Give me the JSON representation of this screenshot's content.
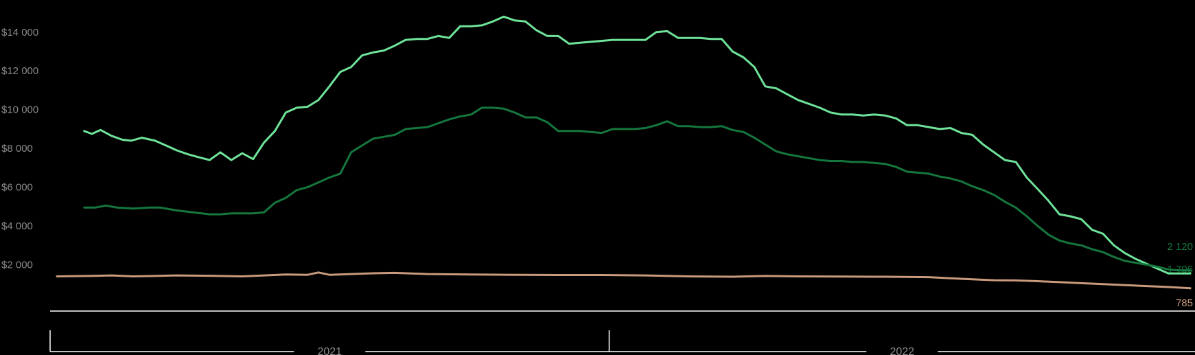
{
  "chart_data": {
    "type": "line",
    "title": "",
    "xlabel": "",
    "ylabel": "",
    "ylim": [
      0,
      15000
    ],
    "grid": false,
    "legend": "none",
    "y_ticks": [
      {
        "value": 2000,
        "label": "$2 000"
      },
      {
        "value": 4000,
        "label": "$4 000"
      },
      {
        "value": 6000,
        "label": "$6 000"
      },
      {
        "value": 8000,
        "label": "$8 000"
      },
      {
        "value": 10000,
        "label": "$10 000"
      },
      {
        "value": 12000,
        "label": "$12 000"
      },
      {
        "value": 14000,
        "label": "$14 000"
      }
    ],
    "x_range": [
      0,
      104
    ],
    "x_groups": [
      {
        "label": "2021",
        "start": 0,
        "end": 52
      },
      {
        "label": "2022",
        "start": 52,
        "end": 104
      }
    ],
    "series": [
      {
        "color": "#6fe39a",
        "end_label": "",
        "points": [
          [
            2.5,
            8900
          ],
          [
            3.2,
            8750
          ],
          [
            4,
            8950
          ],
          [
            5,
            8650
          ],
          [
            6,
            8450
          ],
          [
            6.8,
            8400
          ],
          [
            7.8,
            8550
          ],
          [
            9,
            8400
          ],
          [
            10,
            8150
          ],
          [
            11,
            7900
          ],
          [
            12,
            7700
          ],
          [
            13,
            7550
          ],
          [
            14,
            7400
          ],
          [
            15,
            7800
          ],
          [
            16,
            7400
          ],
          [
            17,
            7750
          ],
          [
            18,
            7450
          ],
          [
            19,
            8300
          ],
          [
            20,
            8900
          ],
          [
            21,
            9850
          ],
          [
            22,
            10100
          ],
          [
            23,
            10150
          ],
          [
            24,
            10500
          ],
          [
            25,
            11200
          ],
          [
            26,
            11950
          ],
          [
            27,
            12200
          ],
          [
            28,
            12800
          ],
          [
            29,
            12950
          ],
          [
            30,
            13050
          ],
          [
            31,
            13300
          ],
          [
            32,
            13600
          ],
          [
            33,
            13650
          ],
          [
            34,
            13650
          ],
          [
            35,
            13800
          ],
          [
            36,
            13700
          ],
          [
            37,
            14300
          ],
          [
            38,
            14300
          ],
          [
            39,
            14350
          ],
          [
            40,
            14550
          ],
          [
            41,
            14800
          ],
          [
            42,
            14600
          ],
          [
            43,
            14550
          ],
          [
            44,
            14100
          ],
          [
            45,
            13800
          ],
          [
            46,
            13800
          ],
          [
            47,
            13400
          ],
          [
            48,
            13450
          ],
          [
            49,
            13500
          ],
          [
            50,
            13550
          ],
          [
            51,
            13600
          ],
          [
            52,
            13600
          ],
          [
            53,
            13600
          ],
          [
            54,
            13600
          ],
          [
            55,
            14000
          ],
          [
            56,
            14050
          ],
          [
            57,
            13700
          ],
          [
            58,
            13700
          ],
          [
            59,
            13700
          ],
          [
            60,
            13650
          ],
          [
            61,
            13650
          ],
          [
            62,
            13000
          ],
          [
            63,
            12700
          ],
          [
            64,
            12200
          ],
          [
            65,
            11200
          ],
          [
            66,
            11100
          ],
          [
            67,
            10800
          ],
          [
            68,
            10500
          ],
          [
            69,
            10300
          ],
          [
            70,
            10100
          ],
          [
            71,
            9850
          ],
          [
            72,
            9750
          ],
          [
            73,
            9750
          ],
          [
            74,
            9700
          ],
          [
            75,
            9750
          ],
          [
            76,
            9700
          ],
          [
            77,
            9550
          ],
          [
            78,
            9200
          ],
          [
            79,
            9200
          ],
          [
            80,
            9100
          ],
          [
            81,
            9000
          ],
          [
            82,
            9050
          ],
          [
            83,
            8800
          ],
          [
            84,
            8700
          ],
          [
            85,
            8200
          ],
          [
            86,
            7800
          ],
          [
            87,
            7400
          ],
          [
            88,
            7300
          ],
          [
            89,
            6500
          ],
          [
            90,
            5900
          ],
          [
            91,
            5300
          ],
          [
            92,
            4600
          ],
          [
            93,
            4500
          ],
          [
            94,
            4350
          ],
          [
            95,
            3800
          ],
          [
            96,
            3600
          ],
          [
            97,
            3000
          ],
          [
            98,
            2600
          ],
          [
            99,
            2300
          ],
          [
            100,
            2050
          ],
          [
            101,
            1800
          ],
          [
            102,
            1550
          ],
          [
            103,
            1550
          ],
          [
            104,
            1550
          ]
        ]
      },
      {
        "color": "#15773d",
        "end_label": "1 706",
        "points": [
          [
            2.5,
            4950
          ],
          [
            3.5,
            4950
          ],
          [
            4.5,
            5050
          ],
          [
            5.5,
            4950
          ],
          [
            7,
            4900
          ],
          [
            8.5,
            4950
          ],
          [
            9.5,
            4950
          ],
          [
            11,
            4800
          ],
          [
            12.5,
            4700
          ],
          [
            14,
            4600
          ],
          [
            15,
            4600
          ],
          [
            16,
            4650
          ],
          [
            17,
            4650
          ],
          [
            18,
            4650
          ],
          [
            19,
            4700
          ],
          [
            20,
            5200
          ],
          [
            21,
            5450
          ],
          [
            22,
            5850
          ],
          [
            23,
            6000
          ],
          [
            24,
            6250
          ],
          [
            25,
            6500
          ],
          [
            26,
            6700
          ],
          [
            27,
            7800
          ],
          [
            28,
            8150
          ],
          [
            29,
            8500
          ],
          [
            30,
            8600
          ],
          [
            31,
            8700
          ],
          [
            32,
            9000
          ],
          [
            33,
            9050
          ],
          [
            34,
            9100
          ],
          [
            35,
            9300
          ],
          [
            36,
            9500
          ],
          [
            37,
            9650
          ],
          [
            38,
            9750
          ],
          [
            39,
            10100
          ],
          [
            40,
            10100
          ],
          [
            41,
            10050
          ],
          [
            42,
            9850
          ],
          [
            43,
            9600
          ],
          [
            44,
            9600
          ],
          [
            45,
            9350
          ],
          [
            46,
            8900
          ],
          [
            47,
            8900
          ],
          [
            48,
            8900
          ],
          [
            49,
            8850
          ],
          [
            50,
            8800
          ],
          [
            51,
            9000
          ],
          [
            52,
            9000
          ],
          [
            53,
            9000
          ],
          [
            54,
            9050
          ],
          [
            55,
            9200
          ],
          [
            56,
            9400
          ],
          [
            57,
            9150
          ],
          [
            58,
            9150
          ],
          [
            59,
            9100
          ],
          [
            60,
            9100
          ],
          [
            61,
            9150
          ],
          [
            62,
            8950
          ],
          [
            63,
            8850
          ],
          [
            64,
            8550
          ],
          [
            65,
            8200
          ],
          [
            66,
            7850
          ],
          [
            67,
            7700
          ],
          [
            68,
            7600
          ],
          [
            69,
            7500
          ],
          [
            70,
            7400
          ],
          [
            71,
            7350
          ],
          [
            72,
            7350
          ],
          [
            73,
            7300
          ],
          [
            74,
            7300
          ],
          [
            75,
            7250
          ],
          [
            76,
            7200
          ],
          [
            77,
            7050
          ],
          [
            78,
            6800
          ],
          [
            79,
            6750
          ],
          [
            80,
            6700
          ],
          [
            81,
            6550
          ],
          [
            82,
            6450
          ],
          [
            83,
            6300
          ],
          [
            84,
            6050
          ],
          [
            85,
            5850
          ],
          [
            86,
            5600
          ],
          [
            87,
            5250
          ],
          [
            88,
            4950
          ],
          [
            89,
            4500
          ],
          [
            90,
            4000
          ],
          [
            91,
            3550
          ],
          [
            92,
            3250
          ],
          [
            93,
            3100
          ],
          [
            94,
            3000
          ],
          [
            95,
            2800
          ],
          [
            96,
            2650
          ],
          [
            97,
            2400
          ],
          [
            98,
            2200
          ],
          [
            99,
            2100
          ],
          [
            100,
            2000
          ],
          [
            101,
            1900
          ],
          [
            102,
            1750
          ],
          [
            103,
            1706
          ],
          [
            104,
            1706
          ]
        ]
      },
      {
        "color": "#c99a7d",
        "end_label": "785",
        "points": [
          [
            0,
            1400
          ],
          [
            3,
            1420
          ],
          [
            5,
            1450
          ],
          [
            7,
            1400
          ],
          [
            9,
            1420
          ],
          [
            11,
            1450
          ],
          [
            14,
            1430
          ],
          [
            17,
            1400
          ],
          [
            19,
            1450
          ],
          [
            21,
            1500
          ],
          [
            23,
            1480
          ],
          [
            24,
            1600
          ],
          [
            25,
            1480
          ],
          [
            27,
            1520
          ],
          [
            29,
            1560
          ],
          [
            31,
            1580
          ],
          [
            34,
            1520
          ],
          [
            38,
            1500
          ],
          [
            42,
            1480
          ],
          [
            46,
            1470
          ],
          [
            50,
            1470
          ],
          [
            54,
            1450
          ],
          [
            58,
            1400
          ],
          [
            62,
            1380
          ],
          [
            65,
            1420
          ],
          [
            68,
            1400
          ],
          [
            72,
            1390
          ],
          [
            76,
            1380
          ],
          [
            80,
            1360
          ],
          [
            82,
            1300
          ],
          [
            84,
            1250
          ],
          [
            86,
            1200
          ],
          [
            88,
            1190
          ],
          [
            90,
            1150
          ],
          [
            92,
            1100
          ],
          [
            94,
            1050
          ],
          [
            96,
            1000
          ],
          [
            98,
            950
          ],
          [
            100,
            900
          ],
          [
            102,
            850
          ],
          [
            104,
            785
          ]
        ]
      }
    ],
    "extra_end_label": {
      "text": "2 120",
      "color": "#15773d",
      "value": 2120
    }
  }
}
